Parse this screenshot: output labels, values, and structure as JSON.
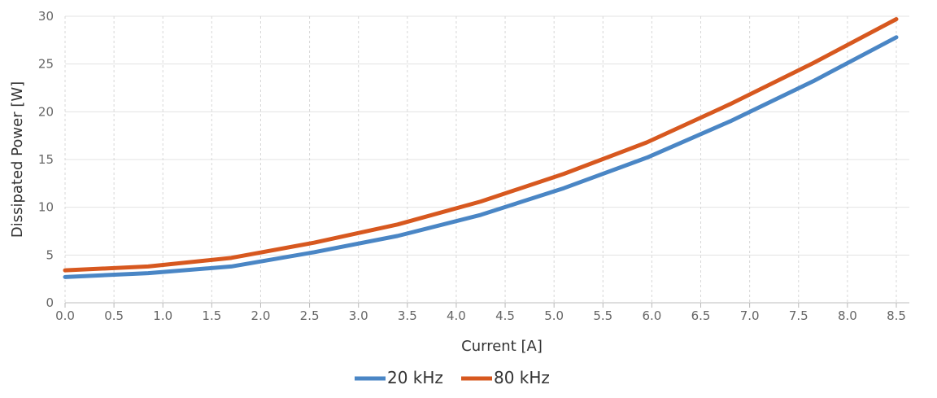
{
  "chart_data": {
    "type": "line",
    "xlabel": "Current [A]",
    "ylabel": "Dissipated Power [W]",
    "xlim": [
      0.0,
      8.5
    ],
    "ylim": [
      0,
      30
    ],
    "x_ticks": [
      "0.0",
      "0.5",
      "1.0",
      "1.5",
      "2.0",
      "2.5",
      "3.0",
      "3.5",
      "4.0",
      "4.5",
      "5.0",
      "5.5",
      "6.0",
      "6.5",
      "7.0",
      "7.5",
      "8.0",
      "8.5"
    ],
    "y_ticks": [
      "0",
      "5",
      "10",
      "15",
      "20",
      "25",
      "30"
    ],
    "grid": true,
    "legend_position": "bottom-center",
    "x": [
      0.0,
      0.85,
      1.7,
      2.55,
      3.4,
      4.25,
      5.1,
      5.95,
      6.8,
      7.65,
      8.5
    ],
    "series": [
      {
        "name": "20 kHz",
        "color": "#4a86c5",
        "values": [
          2.7,
          3.1,
          3.8,
          5.3,
          7.0,
          9.2,
          12.0,
          15.2,
          19.0,
          23.2,
          27.8
        ]
      },
      {
        "name": "80 kHz",
        "color": "#d7581f",
        "values": [
          3.4,
          3.8,
          4.7,
          6.3,
          8.2,
          10.6,
          13.5,
          16.8,
          20.8,
          25.1,
          29.7
        ]
      }
    ]
  }
}
